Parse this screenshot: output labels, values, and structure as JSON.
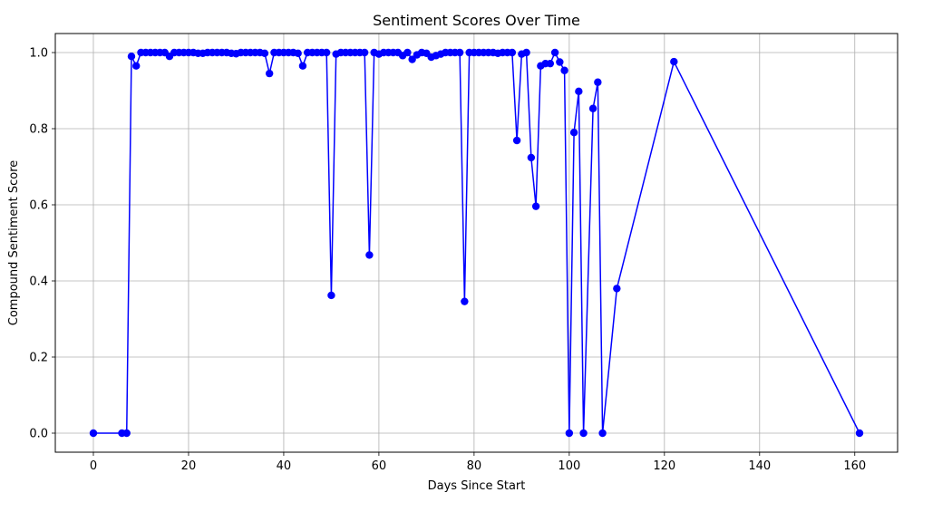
{
  "chart_data": {
    "type": "line",
    "title": "Sentiment Scores Over Time",
    "xlabel": "Days Since Start",
    "ylabel": "Compound Sentiment Score",
    "xlim": [
      -8,
      169
    ],
    "ylim": [
      -0.05,
      1.05
    ],
    "xticks": [
      0,
      20,
      40,
      60,
      80,
      100,
      120,
      140,
      160
    ],
    "yticks": [
      0.0,
      0.2,
      0.4,
      0.6,
      0.8,
      1.0
    ],
    "grid": true,
    "series": [
      {
        "color": "#0000ff",
        "marker": "circle",
        "x": [
          0,
          6,
          7,
          8,
          9,
          10,
          11,
          12,
          13,
          14,
          15,
          16,
          17,
          18,
          19,
          20,
          21,
          22,
          23,
          24,
          25,
          26,
          27,
          28,
          29,
          30,
          31,
          32,
          33,
          34,
          35,
          36,
          37,
          38,
          39,
          40,
          41,
          42,
          43,
          44,
          45,
          46,
          47,
          48,
          49,
          50,
          51,
          52,
          53,
          54,
          55,
          56,
          57,
          58,
          59,
          60,
          61,
          62,
          63,
          64,
          65,
          66,
          67,
          68,
          69,
          70,
          71,
          72,
          73,
          74,
          75,
          76,
          77,
          78,
          79,
          80,
          81,
          82,
          83,
          84,
          85,
          86,
          87,
          88,
          89,
          90,
          91,
          92,
          93,
          94,
          95,
          96,
          97,
          98,
          99,
          100,
          101,
          102,
          103,
          105,
          106,
          107,
          110,
          122,
          161
        ],
        "y": [
          0.0,
          0.0,
          0.0,
          0.99,
          0.965,
          1.0,
          1.0,
          1.0,
          1.0,
          1.0,
          1.0,
          0.99,
          1.0,
          1.0,
          1.0,
          1.0,
          1.0,
          0.998,
          0.998,
          1.0,
          1.0,
          1.0,
          1.0,
          1.0,
          0.998,
          0.997,
          1.0,
          1.0,
          1.0,
          1.0,
          1.0,
          0.998,
          0.945,
          1.0,
          1.0,
          1.0,
          1.0,
          1.0,
          0.998,
          0.965,
          1.0,
          1.0,
          1.0,
          1.0,
          1.0,
          0.362,
          0.996,
          1.0,
          1.0,
          1.0,
          1.0,
          1.0,
          1.0,
          0.468,
          1.0,
          0.996,
          1.0,
          1.0,
          1.0,
          1.0,
          0.992,
          1.0,
          0.982,
          0.994,
          1.0,
          0.998,
          0.988,
          0.992,
          0.996,
          1.0,
          1.0,
          1.0,
          1.0,
          0.346,
          1.0,
          1.0,
          1.0,
          1.0,
          1.0,
          1.0,
          0.998,
          1.0,
          1.0,
          1.0,
          0.769,
          0.996,
          1.0,
          0.724,
          0.596,
          0.965,
          0.971,
          0.971,
          1.0,
          0.975,
          0.953,
          0.0,
          0.79,
          0.898,
          0.0,
          0.853,
          0.922,
          0.0,
          0.38,
          0.976,
          0.0
        ]
      }
    ]
  }
}
